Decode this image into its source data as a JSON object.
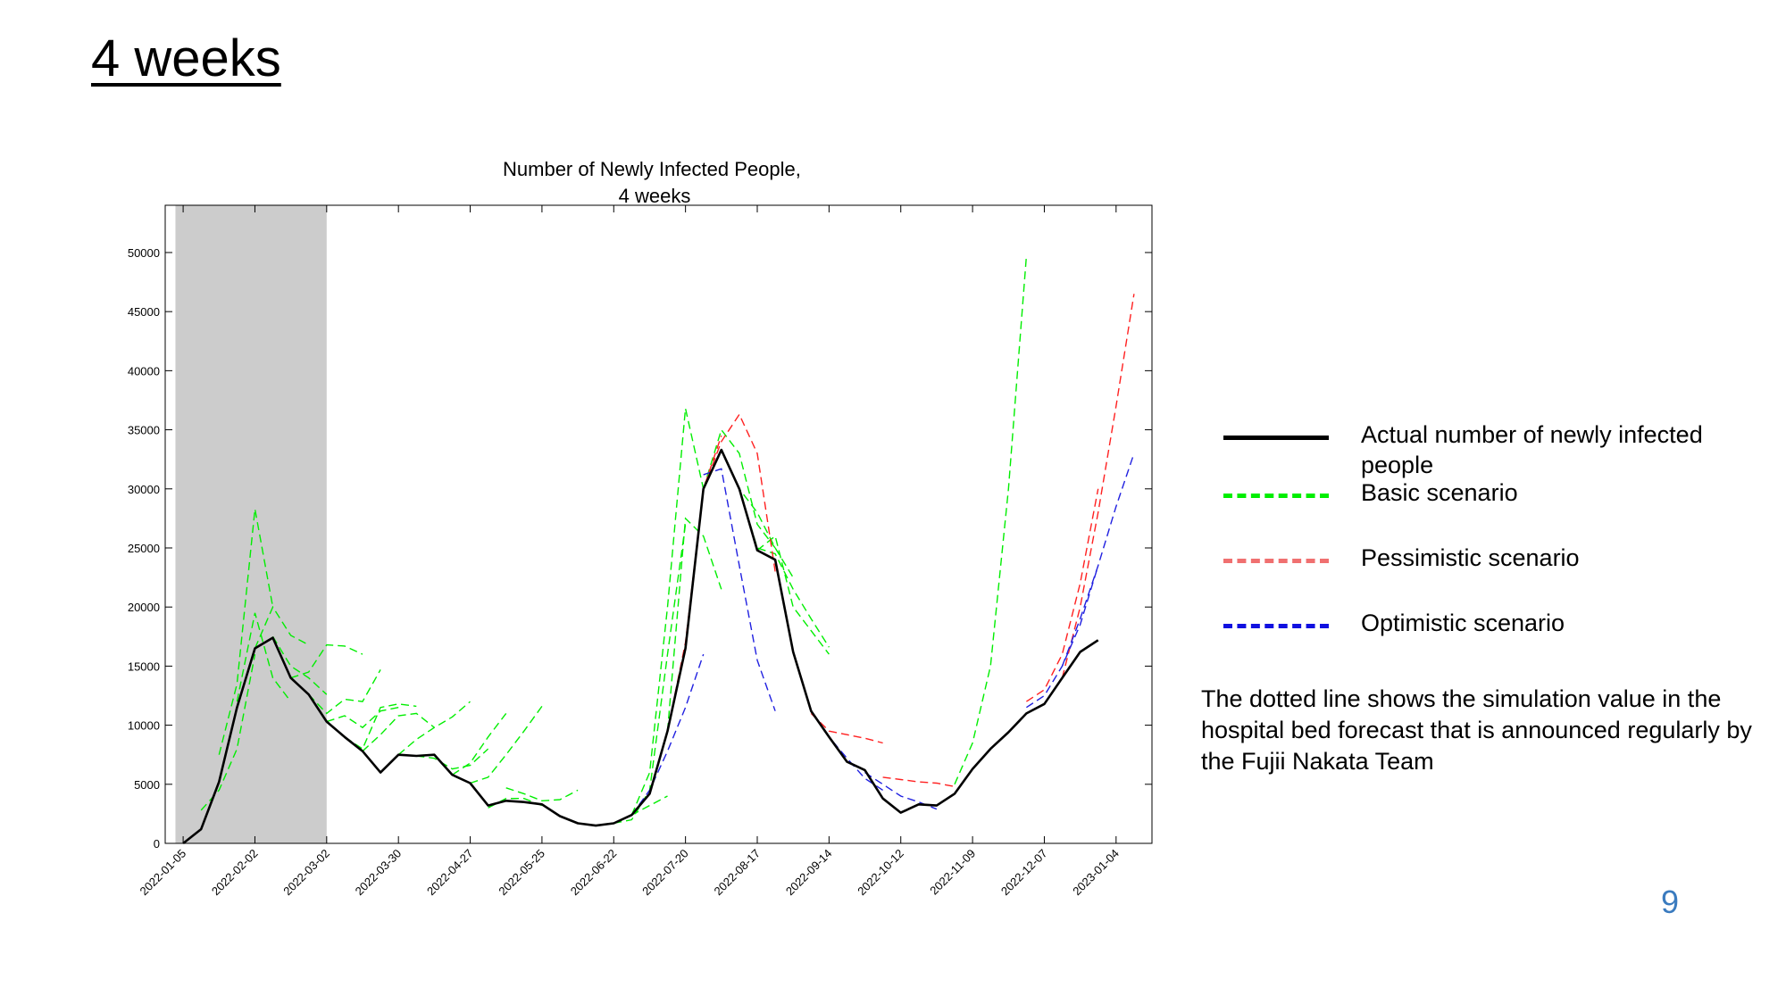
{
  "slide": {
    "title": "4 weeks",
    "page_number": "9"
  },
  "legend": {
    "items": [
      {
        "label": "Actual number of newly infected people",
        "color": "#000000",
        "style": "solid"
      },
      {
        "label": "Basic scenario",
        "color": "#00ee00",
        "style": "dashed"
      },
      {
        "label": "Pessimistic scenario",
        "color": "#f07070",
        "style": "dashed"
      },
      {
        "label": "Optimistic scenario",
        "color": "#1010e0",
        "style": "dashed"
      }
    ]
  },
  "note": "The dotted line shows the simulation value in the hospital bed forecast that is announced regularly by the Fujii Nakata Team",
  "chart_data": {
    "type": "line",
    "title": "Number of Newly Infected People,\n4 weeks",
    "x_tick_labels": [
      "2022-01-05",
      "2022-02-02",
      "2022-03-02",
      "2022-03-30",
      "2022-04-27",
      "2022-05-25",
      "2022-06-22",
      "2022-07-20",
      "2022-08-17",
      "2022-09-14",
      "2022-10-12",
      "2022-11-09",
      "2022-12-07",
      "2023-01-04"
    ],
    "xlim": [
      "2021-12-29",
      "2023-01-18"
    ],
    "ylim": [
      0,
      54000
    ],
    "y_ticks": [
      0,
      5000,
      10000,
      15000,
      20000,
      25000,
      30000,
      35000,
      40000,
      45000,
      50000
    ],
    "shaded_region": [
      "2022-01-02",
      "2022-03-02"
    ],
    "colors": {
      "actual": "#000000",
      "basic": "#00ee00",
      "pessimistic": "#ff2020",
      "optimistic": "#2020e0",
      "shade": "#cccccc"
    },
    "actual": {
      "dates": [
        "2022-01-05",
        "2022-01-12",
        "2022-01-19",
        "2022-01-26",
        "2022-02-02",
        "2022-02-09",
        "2022-02-16",
        "2022-02-23",
        "2022-03-02",
        "2022-03-09",
        "2022-03-16",
        "2022-03-23",
        "2022-03-30",
        "2022-04-06",
        "2022-04-13",
        "2022-04-20",
        "2022-04-27",
        "2022-05-04",
        "2022-05-11",
        "2022-05-18",
        "2022-05-25",
        "2022-06-01",
        "2022-06-08",
        "2022-06-15",
        "2022-06-22",
        "2022-06-29",
        "2022-07-06",
        "2022-07-13",
        "2022-07-20",
        "2022-07-27",
        "2022-08-03",
        "2022-08-10",
        "2022-08-17",
        "2022-08-24",
        "2022-08-31",
        "2022-09-07",
        "2022-09-14",
        "2022-09-21",
        "2022-09-28",
        "2022-10-05",
        "2022-10-12",
        "2022-10-19",
        "2022-10-26",
        "2022-11-02",
        "2022-11-09",
        "2022-11-16",
        "2022-11-23",
        "2022-11-30",
        "2022-12-07",
        "2022-12-14",
        "2022-12-21",
        "2022-12-28",
        "2023-01-04"
      ],
      "values": [
        0,
        1200,
        5200,
        11500,
        16500,
        17400,
        14000,
        12600,
        10300,
        9000,
        7800,
        6000,
        7500,
        7400,
        7500,
        5800,
        5100,
        3200,
        3600,
        3500,
        3300,
        2300,
        1700,
        1500,
        1700,
        2400,
        4200,
        9500,
        16500,
        30000,
        33300,
        30000,
        24800,
        24000,
        16200,
        11200,
        9000,
        6900,
        6200,
        3800,
        2600,
        3300,
        3200,
        4200,
        6300,
        8000,
        9400,
        11000,
        11800,
        14000,
        16200,
        17200,
        null
      ]
    },
    "forecasts": [
      {
        "scenario": "basic",
        "dates": [
          "2022-01-12",
          "2022-01-19",
          "2022-01-26",
          "2022-02-02"
        ],
        "values": [
          2800,
          4500,
          8000,
          16000
        ]
      },
      {
        "scenario": "basic",
        "dates": [
          "2022-01-19",
          "2022-01-26",
          "2022-02-02",
          "2022-02-09"
        ],
        "values": [
          7500,
          13500,
          28300,
          20000
        ]
      },
      {
        "scenario": "basic",
        "dates": [
          "2022-01-26",
          "2022-02-02",
          "2022-02-09",
          "2022-02-16"
        ],
        "values": [
          12000,
          19500,
          14000,
          12000
        ]
      },
      {
        "scenario": "basic",
        "dates": [
          "2022-02-02",
          "2022-02-09",
          "2022-02-16",
          "2022-02-23"
        ],
        "values": [
          16500,
          20000,
          17600,
          16800
        ]
      },
      {
        "scenario": "basic",
        "dates": [
          "2022-02-09",
          "2022-02-16",
          "2022-02-23",
          "2022-03-02"
        ],
        "values": [
          17500,
          15000,
          14000,
          12600
        ]
      },
      {
        "scenario": "basic",
        "dates": [
          "2022-02-16",
          "2022-02-23",
          "2022-03-02",
          "2022-03-09",
          "2022-03-16"
        ],
        "values": [
          14000,
          14500,
          16800,
          16700,
          16000
        ]
      },
      {
        "scenario": "basic",
        "dates": [
          "2022-02-23",
          "2022-03-02",
          "2022-03-09",
          "2022-03-16",
          "2022-03-23"
        ],
        "values": [
          12600,
          11000,
          12200,
          12000,
          14700
        ]
      },
      {
        "scenario": "basic",
        "dates": [
          "2022-03-02",
          "2022-03-09",
          "2022-03-16",
          "2022-03-23",
          "2022-03-30"
        ],
        "values": [
          10300,
          10800,
          9800,
          11200,
          11500
        ]
      },
      {
        "scenario": "basic",
        "dates": [
          "2022-03-09",
          "2022-03-16",
          "2022-03-23",
          "2022-03-30",
          "2022-04-06"
        ],
        "values": [
          9000,
          8000,
          11500,
          11800,
          11600
        ]
      },
      {
        "scenario": "basic",
        "dates": [
          "2022-03-16",
          "2022-03-23",
          "2022-03-30",
          "2022-04-06",
          "2022-04-13"
        ],
        "values": [
          7800,
          9200,
          10800,
          11000,
          9800
        ]
      },
      {
        "scenario": "basic",
        "dates": [
          "2022-03-30",
          "2022-04-06",
          "2022-04-13",
          "2022-04-20",
          "2022-04-27"
        ],
        "values": [
          7500,
          8800,
          9800,
          10700,
          12000
        ]
      },
      {
        "scenario": "basic",
        "dates": [
          "2022-04-06",
          "2022-04-13",
          "2022-04-20",
          "2022-04-27",
          "2022-05-04"
        ],
        "values": [
          7400,
          7200,
          6300,
          6600,
          8000
        ]
      },
      {
        "scenario": "basic",
        "dates": [
          "2022-04-20",
          "2022-04-27",
          "2022-05-04",
          "2022-05-11"
        ],
        "values": [
          5800,
          6800,
          9000,
          11000
        ]
      },
      {
        "scenario": "basic",
        "dates": [
          "2022-04-27",
          "2022-05-04",
          "2022-05-11",
          "2022-05-18",
          "2022-05-25"
        ],
        "values": [
          5100,
          5600,
          7500,
          9500,
          11600
        ]
      },
      {
        "scenario": "basic",
        "dates": [
          "2022-05-04",
          "2022-05-11",
          "2022-05-18",
          "2022-05-25"
        ],
        "values": [
          3000,
          3800,
          3800,
          3200
        ]
      },
      {
        "scenario": "basic",
        "dates": [
          "2022-05-11",
          "2022-05-18",
          "2022-05-25",
          "2022-06-01",
          "2022-06-08"
        ],
        "values": [
          4700,
          4200,
          3600,
          3700,
          4500
        ]
      },
      {
        "scenario": "basic",
        "dates": [
          "2022-06-15",
          "2022-06-22",
          "2022-06-29",
          "2022-07-06",
          "2022-07-13"
        ],
        "values": [
          1500,
          1700,
          2400,
          3200,
          4000
        ]
      },
      {
        "scenario": "basic",
        "dates": [
          "2022-06-22",
          "2022-06-29",
          "2022-07-06",
          "2022-07-13",
          "2022-07-20"
        ],
        "values": [
          1700,
          2000,
          4500,
          16000,
          27000
        ]
      },
      {
        "scenario": "basic",
        "dates": [
          "2022-06-29",
          "2022-07-06",
          "2022-07-13",
          "2022-07-20",
          "2022-07-27"
        ],
        "values": [
          2400,
          6000,
          20000,
          36800,
          30000
        ]
      },
      {
        "scenario": "basic",
        "dates": [
          "2022-07-13",
          "2022-07-20",
          "2022-07-27",
          "2022-08-03"
        ],
        "values": [
          9500,
          27500,
          26000,
          21500
        ]
      },
      {
        "scenario": "basic",
        "dates": [
          "2022-07-27",
          "2022-08-03",
          "2022-08-10",
          "2022-08-17",
          "2022-08-24"
        ],
        "values": [
          30000,
          35000,
          33000,
          27000,
          25000
        ]
      },
      {
        "scenario": "basic",
        "dates": [
          "2022-08-03",
          "2022-08-10",
          "2022-08-17",
          "2022-08-24",
          "2022-08-31"
        ],
        "values": [
          33300,
          30000,
          28000,
          25000,
          22500
        ]
      },
      {
        "scenario": "basic",
        "dates": [
          "2022-08-10",
          "2022-08-17",
          "2022-08-24",
          "2022-08-31",
          "2022-09-07",
          "2022-09-14"
        ],
        "values": [
          30000,
          25000,
          24500,
          21500,
          19000,
          16600
        ]
      },
      {
        "scenario": "basic",
        "dates": [
          "2022-08-17",
          "2022-08-24",
          "2022-08-31",
          "2022-09-07",
          "2022-09-14"
        ],
        "values": [
          24800,
          26000,
          20000,
          18000,
          16000
        ]
      },
      {
        "scenario": "basic",
        "dates": [
          "2022-11-02",
          "2022-11-09",
          "2022-11-16",
          "2022-11-23",
          "2022-11-30"
        ],
        "values": [
          5000,
          8500,
          15000,
          30000,
          49700
        ]
      },
      {
        "scenario": "pessimistic",
        "dates": [
          "2022-07-27",
          "2022-08-03",
          "2022-08-10",
          "2022-08-17",
          "2022-08-24"
        ],
        "values": [
          30000,
          34000,
          36300,
          33000,
          23000
        ]
      },
      {
        "scenario": "pessimistic",
        "dates": [
          "2022-07-13",
          "2022-07-20",
          "2022-07-27",
          "2022-08-03"
        ],
        "values": [
          9500,
          17000,
          30000,
          34500
        ]
      },
      {
        "scenario": "pessimistic",
        "dates": [
          "2022-09-07",
          "2022-09-14",
          "2022-09-21",
          "2022-09-28",
          "2022-10-05"
        ],
        "values": [
          11000,
          9500,
          9200,
          8900,
          8500
        ]
      },
      {
        "scenario": "pessimistic",
        "dates": [
          "2022-10-05",
          "2022-10-12",
          "2022-10-19",
          "2022-10-26",
          "2022-11-02"
        ],
        "values": [
          5600,
          5400,
          5200,
          5100,
          4800
        ]
      },
      {
        "scenario": "pessimistic",
        "dates": [
          "2022-11-30",
          "2022-12-07",
          "2022-12-14",
          "2022-12-21",
          "2022-12-28"
        ],
        "values": [
          12000,
          13000,
          16000,
          22000,
          30000
        ]
      },
      {
        "scenario": "pessimistic",
        "dates": [
          "2022-12-14",
          "2022-12-21",
          "2022-12-28",
          "2023-01-04",
          "2023-01-11"
        ],
        "values": [
          14000,
          20000,
          28000,
          37000,
          46500
        ]
      },
      {
        "scenario": "optimistic",
        "dates": [
          "2022-06-29",
          "2022-07-06",
          "2022-07-13",
          "2022-07-20",
          "2022-07-27"
        ],
        "values": [
          2400,
          4500,
          7800,
          11500,
          16000
        ]
      },
      {
        "scenario": "optimistic",
        "dates": [
          "2022-07-27",
          "2022-08-03",
          "2022-08-10",
          "2022-08-17",
          "2022-08-24"
        ],
        "values": [
          31200,
          31700,
          23500,
          15500,
          11200
        ]
      },
      {
        "scenario": "optimistic",
        "dates": [
          "2022-09-07",
          "2022-09-14",
          "2022-09-21",
          "2022-09-28",
          "2022-10-05"
        ],
        "values": [
          11200,
          9000,
          7200,
          5500,
          4500
        ]
      },
      {
        "scenario": "optimistic",
        "dates": [
          "2022-09-28",
          "2022-10-05",
          "2022-10-12",
          "2022-10-19",
          "2022-10-26"
        ],
        "values": [
          6000,
          5000,
          4000,
          3500,
          2900
        ]
      },
      {
        "scenario": "optimistic",
        "dates": [
          "2022-11-30",
          "2022-12-07",
          "2022-12-14",
          "2022-12-21",
          "2022-12-28"
        ],
        "values": [
          11500,
          12500,
          15000,
          18500,
          23500
        ]
      },
      {
        "scenario": "optimistic",
        "dates": [
          "2022-12-14",
          "2022-12-21",
          "2022-12-28",
          "2023-01-04",
          "2023-01-11"
        ],
        "values": [
          15000,
          19000,
          23500,
          28500,
          33000
        ]
      }
    ]
  }
}
